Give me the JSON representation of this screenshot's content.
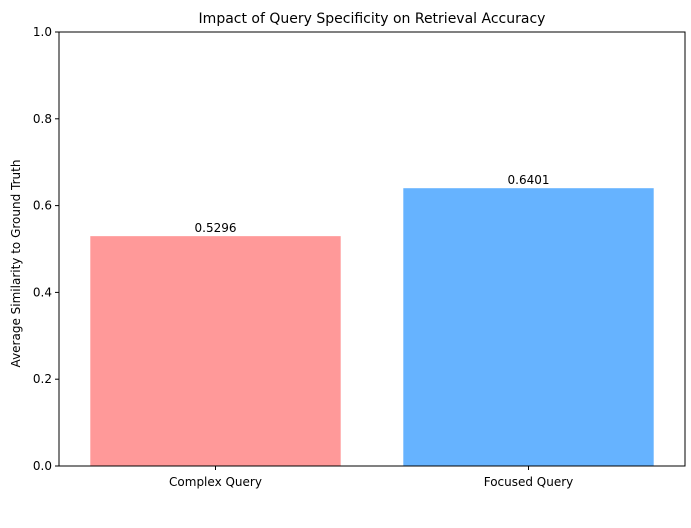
{
  "chart_data": {
    "type": "bar",
    "title": "Impact of Query Specificity on Retrieval Accuracy",
    "xlabel": "",
    "ylabel": "Average Similarity to Ground Truth",
    "categories": [
      "Complex Query",
      "Focused Query"
    ],
    "values": [
      0.5296,
      0.6401
    ],
    "value_labels": [
      "0.5296",
      "0.6401"
    ],
    "colors": [
      "#ff9999",
      "#66b3ff"
    ],
    "ylim": [
      0,
      1
    ],
    "yticks": [
      0.0,
      0.2,
      0.4,
      0.6,
      0.8,
      1.0
    ],
    "ytick_labels": [
      "0.0",
      "0.2",
      "0.4",
      "0.6",
      "0.8",
      "1.0"
    ],
    "grid": false,
    "legend": "none"
  }
}
